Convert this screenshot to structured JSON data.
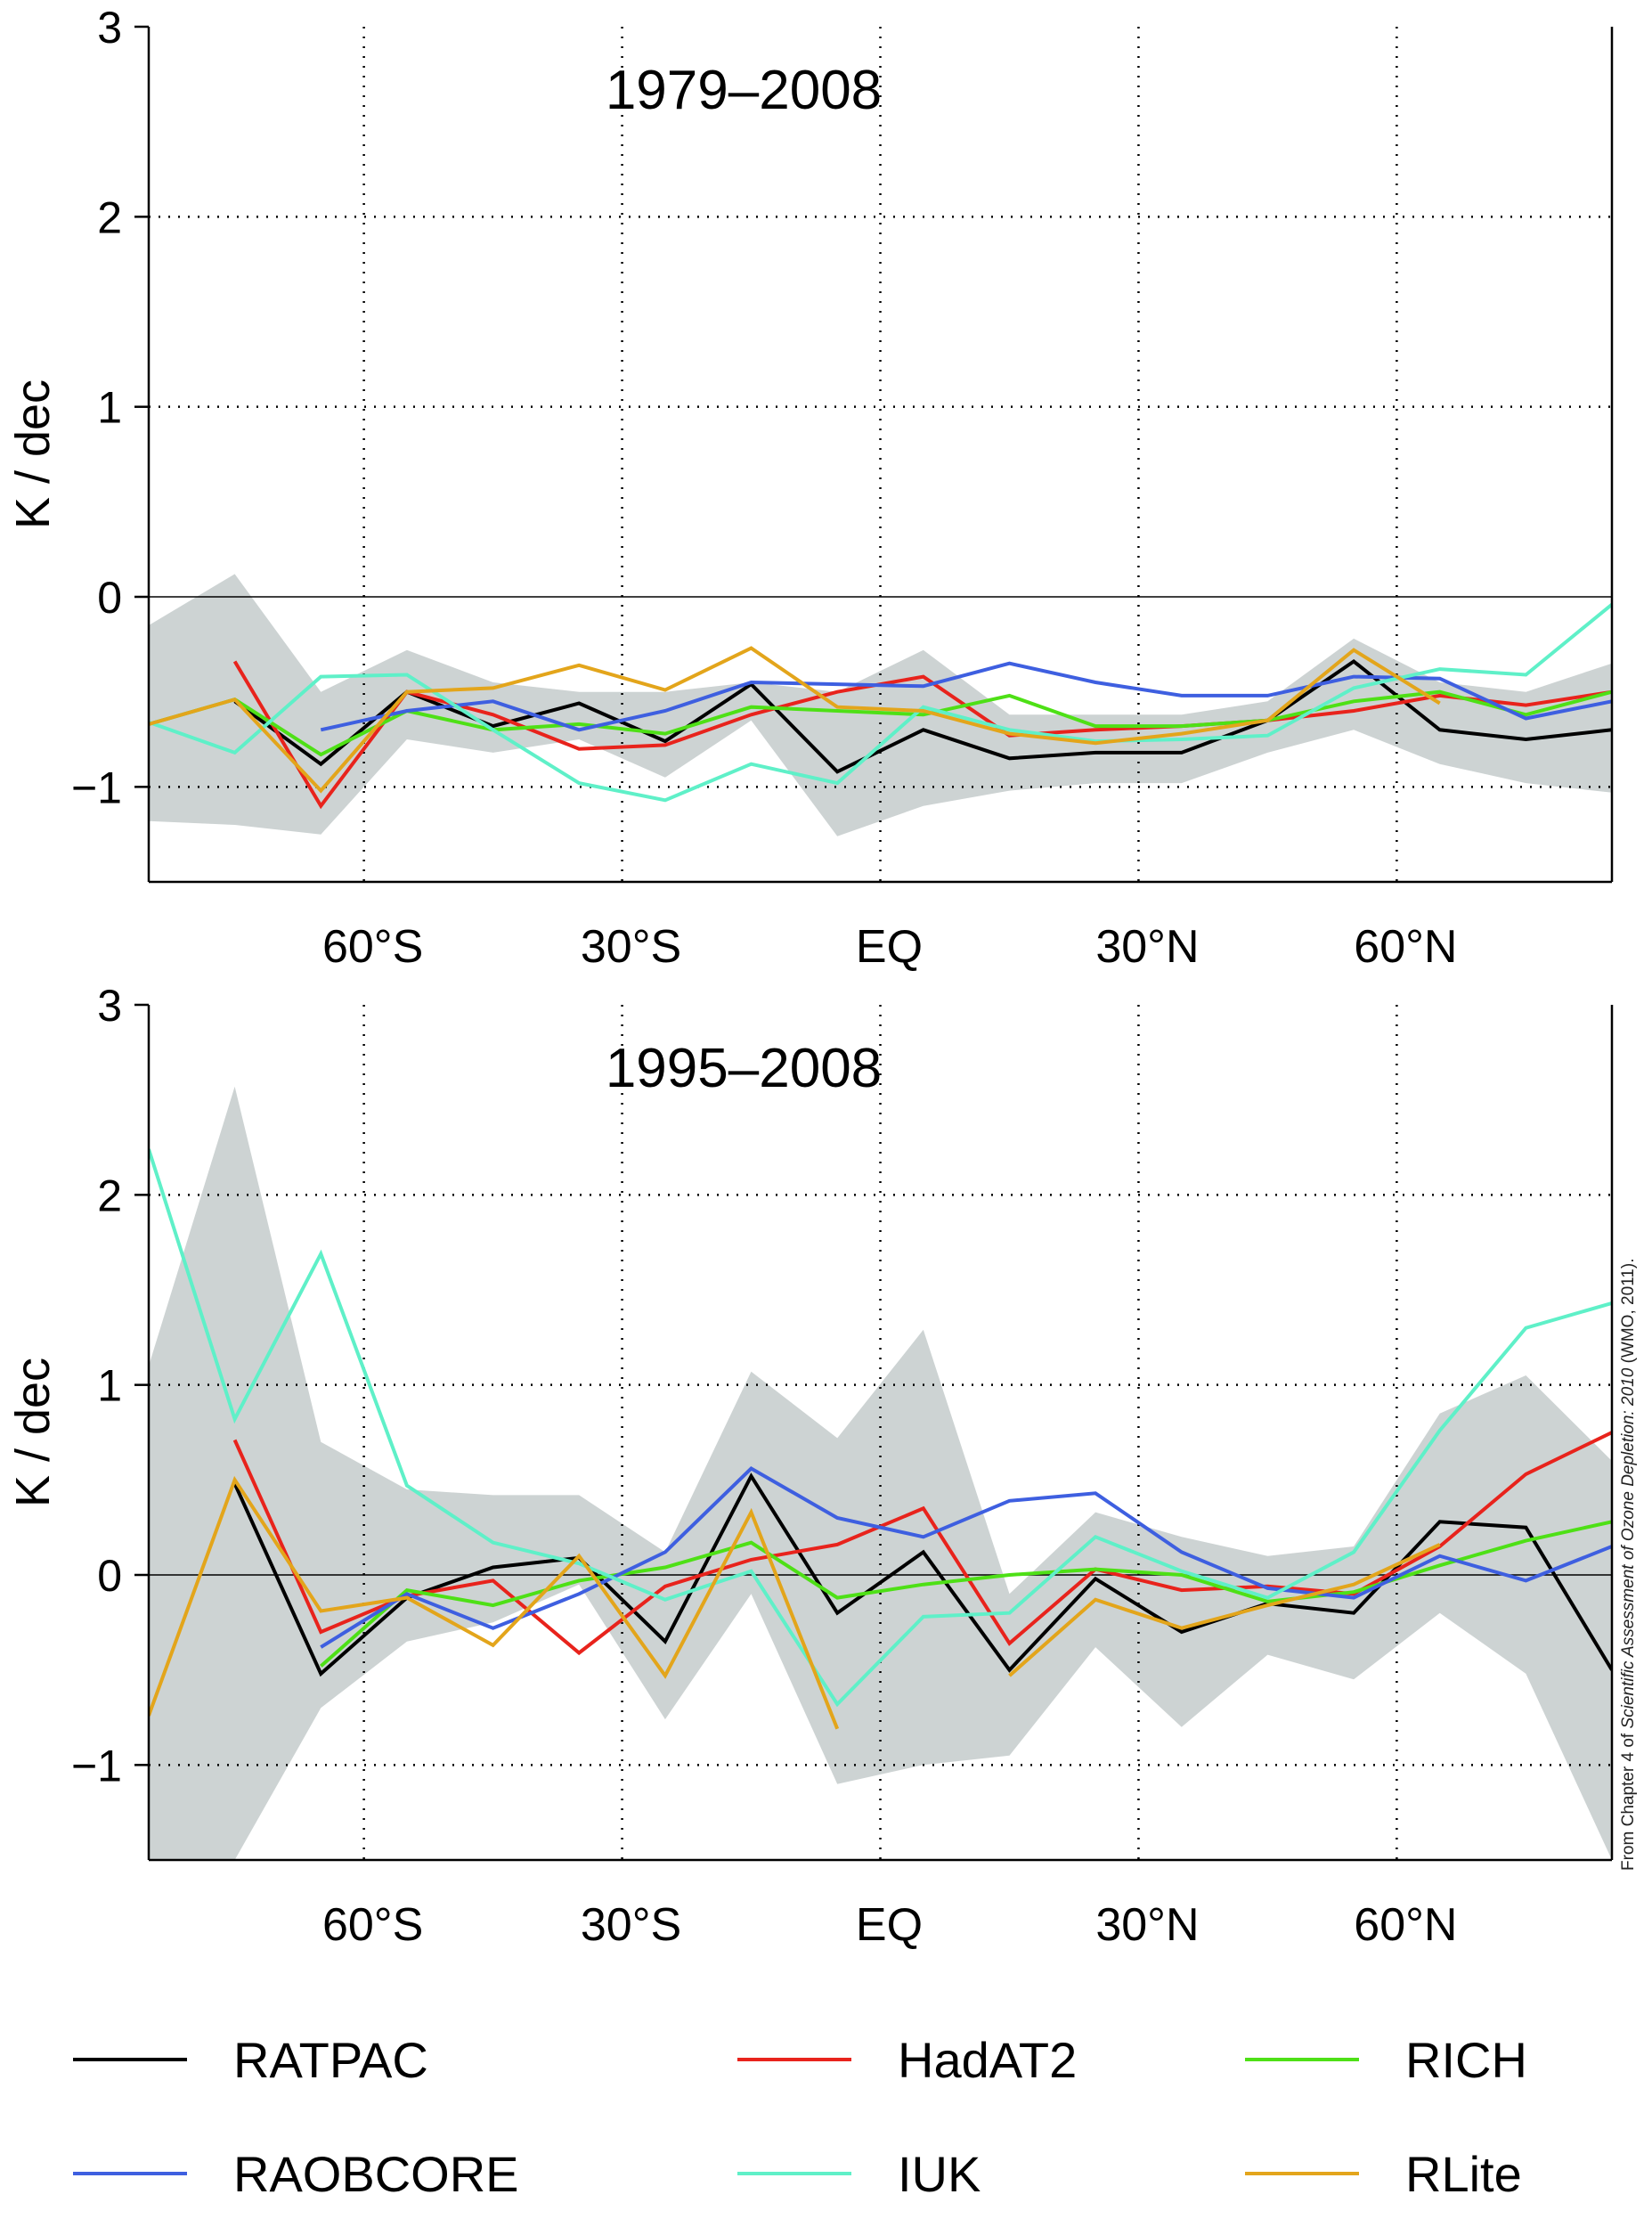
{
  "chart_data": [
    {
      "type": "line",
      "title": "1979–2008",
      "xlabel": "",
      "ylabel": "K / dec",
      "ylim": [
        -1.5,
        3
      ],
      "xlim": [
        -85,
        85
      ],
      "yticks": [
        3,
        2,
        1,
        0,
        -1
      ],
      "ytick_labels": [
        "3",
        "2",
        "1",
        "0",
        "−1"
      ],
      "xticks": [
        -60,
        -30,
        0,
        30,
        60
      ],
      "xtick_labels": [
        "60°S",
        "30°S",
        "EQ",
        "30°N",
        "60°N"
      ],
      "grid": true,
      "band": {
        "x": [
          -85,
          -75,
          -65,
          -55,
          -45,
          -35,
          -25,
          -15,
          -5,
          5,
          15,
          25,
          35,
          45,
          55,
          65,
          75,
          85
        ],
        "upper": [
          -0.15,
          0.12,
          -0.5,
          -0.28,
          -0.45,
          -0.5,
          -0.5,
          -0.45,
          -0.5,
          -0.28,
          -0.62,
          -0.62,
          -0.62,
          -0.55,
          -0.22,
          -0.45,
          -0.5,
          -0.35
        ],
        "lower": [
          -1.18,
          -1.2,
          -1.25,
          -0.75,
          -0.82,
          -0.75,
          -0.95,
          -0.65,
          -1.26,
          -1.1,
          -1.02,
          -0.98,
          -0.98,
          -0.82,
          -0.7,
          -0.88,
          -0.98,
          -1.03
        ]
      },
      "series": [
        {
          "name": "RATPAC",
          "color": "#000000",
          "x": [
            -75,
            -65,
            -55,
            -45,
            -35,
            -25,
            -15,
            -5,
            5,
            15,
            25,
            35,
            45,
            55,
            65,
            75,
            85
          ],
          "values": [
            -0.55,
            -0.88,
            -0.5,
            -0.68,
            -0.56,
            -0.76,
            -0.46,
            -0.92,
            -0.7,
            -0.85,
            -0.82,
            -0.82,
            -0.65,
            -0.34,
            -0.7,
            -0.75,
            -0.7
          ]
        },
        {
          "name": "HadAT2",
          "color": "#e8231c",
          "x": [
            -75,
            -65,
            -55,
            -45,
            -35,
            -25,
            -15,
            -5,
            5,
            15,
            25,
            35,
            45,
            55,
            65,
            75,
            85
          ],
          "values": [
            -0.34,
            -1.1,
            -0.5,
            -0.62,
            -0.8,
            -0.78,
            -0.62,
            -0.5,
            -0.42,
            -0.73,
            -0.7,
            -0.68,
            -0.65,
            -0.6,
            -0.52,
            -0.57,
            -0.5
          ]
        },
        {
          "name": "RICH",
          "color": "#4ee016",
          "x": [
            -85,
            -75,
            -65,
            -55,
            -45,
            -35,
            -25,
            -15,
            -5,
            5,
            15,
            25,
            35,
            45,
            55,
            65,
            75,
            85
          ],
          "values": [
            -0.67,
            -0.54,
            -0.83,
            -0.6,
            -0.7,
            -0.67,
            -0.72,
            -0.58,
            -0.6,
            -0.62,
            -0.52,
            -0.68,
            -0.68,
            -0.65,
            -0.55,
            -0.5,
            -0.62,
            -0.5
          ]
        },
        {
          "name": "RAOBCORE",
          "color": "#3e5fe0",
          "x": [
            -65,
            -55,
            -45,
            -35,
            -25,
            -15,
            -5,
            5,
            15,
            25,
            35,
            45,
            55,
            65,
            75,
            85
          ],
          "values": [
            -0.7,
            -0.6,
            -0.55,
            -0.7,
            -0.6,
            -0.45,
            -0.46,
            -0.47,
            -0.35,
            -0.45,
            -0.52,
            -0.52,
            -0.42,
            -0.43,
            -0.64,
            -0.55
          ]
        },
        {
          "name": "IUK",
          "color": "#5ff0c8",
          "x": [
            -85,
            -75,
            -65,
            -55,
            -45,
            -35,
            -25,
            -15,
            -5,
            5,
            15,
            25,
            35,
            45,
            55,
            65,
            75,
            85
          ],
          "values": [
            -0.66,
            -0.82,
            -0.42,
            -0.41,
            -0.7,
            -0.98,
            -1.07,
            -0.88,
            -0.98,
            -0.58,
            -0.7,
            -0.76,
            -0.75,
            -0.73,
            -0.48,
            -0.38,
            -0.41,
            -0.04
          ]
        },
        {
          "name": "RLite",
          "color": "#e3a51b",
          "x": [
            -85,
            -75,
            -65,
            -55,
            -45,
            -35,
            -25,
            -15,
            -5,
            5,
            15,
            25,
            35,
            45,
            55,
            65
          ],
          "values": [
            -0.67,
            -0.54,
            -1.02,
            -0.5,
            -0.48,
            -0.36,
            -0.49,
            -0.27,
            -0.58,
            -0.6,
            -0.72,
            -0.77,
            -0.72,
            -0.65,
            -0.28,
            -0.56
          ]
        }
      ]
    },
    {
      "type": "line",
      "title": "1995–2008",
      "xlabel": "",
      "ylabel": "K / dec",
      "ylim": [
        -1.5,
        3
      ],
      "xlim": [
        -85,
        85
      ],
      "yticks": [
        3,
        2,
        1,
        0,
        -1
      ],
      "ytick_labels": [
        "3",
        "2",
        "1",
        "0",
        "−1"
      ],
      "xticks": [
        -60,
        -30,
        0,
        30,
        60
      ],
      "xtick_labels": [
        "60°S",
        "30°S",
        "EQ",
        "30°N",
        "60°N"
      ],
      "grid": true,
      "band": {
        "x": [
          -85,
          -75,
          -65,
          -55,
          -45,
          -35,
          -25,
          -15,
          -5,
          5,
          15,
          25,
          35,
          45,
          55,
          65,
          75,
          85
        ],
        "upper": [
          1.1,
          2.57,
          0.7,
          0.45,
          0.42,
          0.42,
          0.12,
          1.07,
          0.72,
          1.29,
          -0.1,
          0.33,
          0.2,
          0.1,
          0.15,
          0.85,
          1.05,
          0.6
        ],
        "lower": [
          -1.5,
          -1.5,
          -0.7,
          -0.35,
          -0.25,
          -0.05,
          -0.76,
          -0.1,
          -1.1,
          -1.0,
          -0.95,
          -0.38,
          -0.8,
          -0.42,
          -0.55,
          -0.2,
          -0.52,
          -1.5
        ]
      },
      "series": [
        {
          "name": "RATPAC",
          "color": "#000000",
          "x": [
            -75,
            -65,
            -55,
            -45,
            -35,
            -25,
            -15,
            -5,
            5,
            15,
            25,
            35,
            45,
            55,
            65,
            75,
            85
          ],
          "values": [
            0.48,
            -0.52,
            -0.12,
            0.04,
            0.09,
            -0.35,
            0.52,
            -0.2,
            0.12,
            -0.5,
            -0.02,
            -0.3,
            -0.15,
            -0.2,
            0.28,
            0.25,
            -0.5
          ]
        },
        {
          "name": "HadAT2",
          "color": "#e8231c",
          "x": [
            -75,
            -65,
            -55,
            -45,
            -35,
            -25,
            -15,
            -5,
            5,
            15,
            25,
            35,
            45,
            55,
            65,
            75,
            85
          ],
          "values": [
            0.71,
            -0.3,
            -0.11,
            -0.03,
            -0.41,
            -0.06,
            0.08,
            0.16,
            0.35,
            -0.36,
            0.03,
            -0.08,
            -0.06,
            -0.1,
            0.15,
            0.53,
            0.75
          ]
        },
        {
          "name": "RICH",
          "color": "#4ee016",
          "x": [
            -65,
            -55,
            -45,
            -35,
            -25,
            -15,
            -5,
            5,
            15,
            25,
            35,
            45,
            55,
            65,
            75,
            85
          ],
          "values": [
            -0.48,
            -0.08,
            -0.16,
            -0.03,
            0.04,
            0.17,
            -0.12,
            -0.05,
            0.0,
            0.03,
            0.0,
            -0.14,
            -0.09,
            0.05,
            0.18,
            0.28
          ]
        },
        {
          "name": "RAOBCORE",
          "color": "#3e5fe0",
          "x": [
            -65,
            -55,
            -45,
            -35,
            -25,
            -15,
            -5,
            5,
            15,
            25,
            35,
            45,
            55,
            65,
            75,
            85
          ],
          "values": [
            -0.38,
            -0.1,
            -0.28,
            -0.1,
            0.12,
            0.56,
            0.3,
            0.2,
            0.39,
            0.43,
            0.12,
            -0.07,
            -0.12,
            0.1,
            -0.03,
            0.15
          ]
        },
        {
          "name": "IUK",
          "color": "#5ff0c8",
          "x": [
            -85,
            -75,
            -65,
            -55,
            -45,
            -35,
            -25,
            -15,
            -5,
            5,
            15,
            25,
            35,
            45,
            55,
            65,
            75,
            85
          ],
          "values": [
            2.24,
            0.82,
            1.69,
            0.47,
            0.17,
            0.06,
            -0.13,
            0.02,
            -0.68,
            -0.22,
            -0.2,
            0.2,
            0.02,
            -0.12,
            0.12,
            0.76,
            1.3,
            1.43
          ]
        },
        {
          "name": "RLite",
          "color": "#e3a51b",
          "x": [
            -85,
            -75,
            -65,
            -55,
            -45,
            -35,
            -25,
            -15,
            -5,
            5,
            15,
            25,
            35,
            45,
            55,
            65
          ],
          "values": [
            -0.74,
            0.5,
            -0.19,
            -0.12,
            -0.37,
            0.1,
            -0.53,
            0.33,
            -0.81,
            null,
            -0.53,
            -0.13,
            -0.28,
            -0.16,
            -0.05,
            0.16
          ]
        }
      ]
    }
  ],
  "legend": [
    {
      "name": "RATPAC",
      "color": "#000000"
    },
    {
      "name": "HadAT2",
      "color": "#e8231c"
    },
    {
      "name": "RICH",
      "color": "#4ee016"
    },
    {
      "name": "RAOBCORE",
      "color": "#3e5fe0"
    },
    {
      "name": "IUK",
      "color": "#5ff0c8"
    },
    {
      "name": "RLite",
      "color": "#e3a51b"
    }
  ],
  "band_color": "#cdd3d3",
  "credit": {
    "prefix": "From Chapter 4 of ",
    "italic": "Scientific Assessment of Ozone Depletion: 2010",
    "suffix": " (WMO, 2011)."
  }
}
